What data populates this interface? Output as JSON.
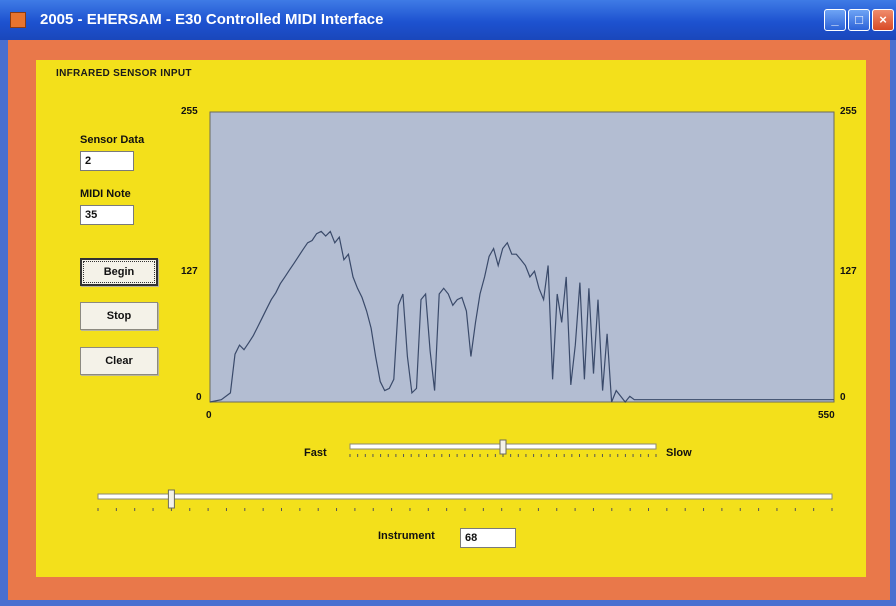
{
  "window": {
    "title": "2005 - EHERSAM - E30 Controlled MIDI Interface"
  },
  "group": {
    "title": "INFRARED SENSOR INPUT"
  },
  "fields": {
    "sensor_data": {
      "label": "Sensor Data",
      "value": "2"
    },
    "midi_note": {
      "label": "MIDI Note",
      "value": "35"
    }
  },
  "buttons": {
    "begin": "Begin",
    "stop": "Stop",
    "clear": "Clear"
  },
  "chart_data": {
    "type": "line",
    "title": "",
    "xlabel": "",
    "ylabel": "",
    "xlim": [
      0,
      550
    ],
    "ylim": [
      0,
      255
    ],
    "y_ticks_left": [
      "255",
      "127",
      "0"
    ],
    "y_ticks_right": [
      "255",
      "127",
      "0"
    ],
    "x_ticks": [
      "0",
      "550"
    ],
    "grid": false,
    "line_color": "#3a4a6a",
    "plot_bg": "#b3bdd2",
    "series": [
      {
        "x": [
          0,
          10,
          18,
          22,
          26,
          30,
          34,
          38,
          42,
          46,
          50,
          54,
          58,
          62,
          66,
          70,
          74,
          78,
          82,
          86,
          90,
          94,
          98,
          102,
          106,
          110,
          114,
          118,
          122,
          126,
          130,
          134,
          138,
          142,
          146,
          150,
          154,
          158,
          162,
          166,
          170,
          174,
          178,
          182,
          186,
          190,
          194,
          198,
          202,
          206,
          210,
          214,
          218,
          222,
          226,
          230,
          234,
          238,
          242,
          246,
          250,
          254,
          258,
          262,
          266,
          270,
          274,
          278,
          282,
          286,
          290,
          294,
          298,
          302,
          306,
          310,
          314,
          318,
          322,
          326,
          330,
          334,
          338,
          342,
          346,
          350,
          354,
          358,
          362,
          366,
          370,
          374,
          378,
          382,
          386,
          390,
          394,
          398,
          402,
          406,
          410,
          414,
          418,
          422,
          426,
          430,
          434,
          438,
          442,
          446,
          450,
          454,
          458,
          462,
          466,
          470,
          474,
          478,
          482,
          486,
          490,
          494,
          498,
          502,
          506,
          510,
          514,
          518,
          522,
          526,
          530,
          534,
          538,
          542,
          546,
          550
        ],
        "values": [
          0,
          2,
          8,
          42,
          50,
          46,
          52,
          58,
          66,
          74,
          82,
          90,
          96,
          104,
          110,
          116,
          122,
          128,
          134,
          140,
          142,
          148,
          150,
          146,
          150,
          140,
          145,
          125,
          130,
          110,
          100,
          92,
          80,
          65,
          40,
          18,
          10,
          12,
          20,
          85,
          95,
          40,
          8,
          12,
          90,
          95,
          45,
          10,
          95,
          100,
          95,
          85,
          90,
          92,
          80,
          40,
          70,
          95,
          110,
          128,
          135,
          120,
          135,
          140,
          130,
          130,
          125,
          120,
          110,
          115,
          100,
          90,
          120,
          20,
          95,
          70,
          110,
          15,
          50,
          105,
          20,
          100,
          25,
          90,
          10,
          60,
          0,
          10,
          5,
          0,
          5,
          2,
          2,
          2,
          2,
          2,
          2,
          2,
          2,
          2,
          2,
          2,
          2,
          2,
          2,
          2,
          2,
          2,
          2,
          2,
          2,
          2,
          2,
          2,
          2,
          2,
          2,
          2,
          2,
          2,
          2,
          2,
          2,
          2,
          2,
          2,
          2,
          2,
          2,
          2,
          2,
          2,
          2,
          2,
          2,
          2
        ]
      }
    ]
  },
  "speed_slider": {
    "left_label": "Fast",
    "right_label": "Slow",
    "value_fraction": 0.5
  },
  "instrument_slider": {
    "value_fraction": 0.1
  },
  "instrument": {
    "label": "Instrument",
    "value": "68"
  }
}
